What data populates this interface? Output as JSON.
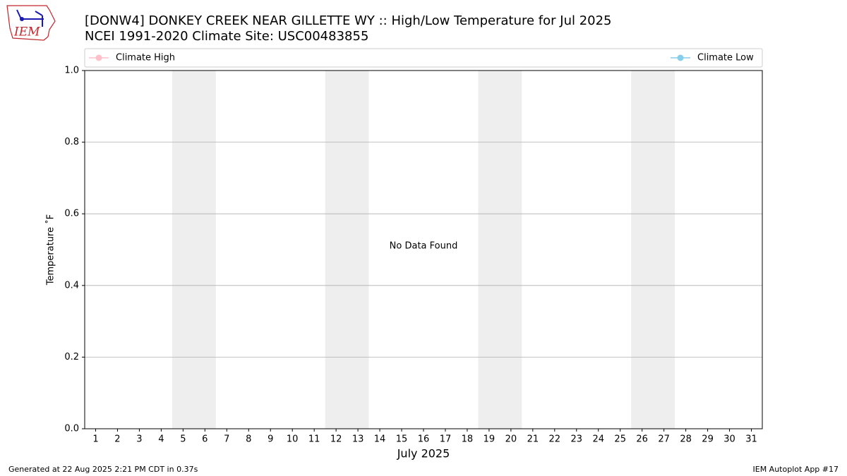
{
  "logo_text": "IEM",
  "chart_data": {
    "type": "line",
    "title": "[DONW4] DONKEY CREEK NEAR GILLETTE  WY :: High/Low Temperature for Jul 2025",
    "subtitle": "NCEI 1991-2020 Climate Site: USC00483855",
    "x_label": "July 2025",
    "y_label": "Temperature ˚F",
    "annotation": "No Data Found",
    "x": [
      1,
      2,
      3,
      4,
      5,
      6,
      7,
      8,
      9,
      10,
      11,
      12,
      13,
      14,
      15,
      16,
      17,
      18,
      19,
      20,
      21,
      22,
      23,
      24,
      25,
      26,
      27,
      28,
      29,
      30,
      31
    ],
    "series": [
      {
        "name": "Climate High",
        "color": "#ffc0cb",
        "values": [
          null,
          null,
          null,
          null,
          null,
          null,
          null,
          null,
          null,
          null,
          null,
          null,
          null,
          null,
          null,
          null,
          null,
          null,
          null,
          null,
          null,
          null,
          null,
          null,
          null,
          null,
          null,
          null,
          null,
          null,
          null
        ]
      },
      {
        "name": "Climate Low",
        "color": "#87ceeb",
        "values": [
          null,
          null,
          null,
          null,
          null,
          null,
          null,
          null,
          null,
          null,
          null,
          null,
          null,
          null,
          null,
          null,
          null,
          null,
          null,
          null,
          null,
          null,
          null,
          null,
          null,
          null,
          null,
          null,
          null,
          null,
          null
        ]
      }
    ],
    "shaded_spans": [
      [
        4.5,
        6.5
      ],
      [
        11.5,
        13.5
      ],
      [
        18.5,
        20.5
      ],
      [
        25.5,
        27.5
      ]
    ],
    "shade_color": "#eeeeee",
    "xlim": [
      0.5,
      31.5
    ],
    "xticks": [
      1,
      2,
      3,
      4,
      5,
      6,
      7,
      8,
      9,
      10,
      11,
      12,
      13,
      14,
      15,
      16,
      17,
      18,
      19,
      20,
      21,
      22,
      23,
      24,
      25,
      26,
      27,
      28,
      29,
      30,
      31
    ],
    "ylim": [
      0,
      1
    ],
    "yticks": [
      {
        "value": 0,
        "label": "0.0"
      },
      {
        "value": 0.2,
        "label": "0.2"
      },
      {
        "value": 0.4,
        "label": "0.4"
      },
      {
        "value": 0.6,
        "label": "0.6"
      },
      {
        "value": 0.8,
        "label": "0.8"
      },
      {
        "value": 1,
        "label": "1.0"
      }
    ],
    "grid": true,
    "footer_left": "Generated at 22 Aug 2025 2:21 PM CDT in 0.37s",
    "footer_right": "IEM Autoplot App #17"
  }
}
